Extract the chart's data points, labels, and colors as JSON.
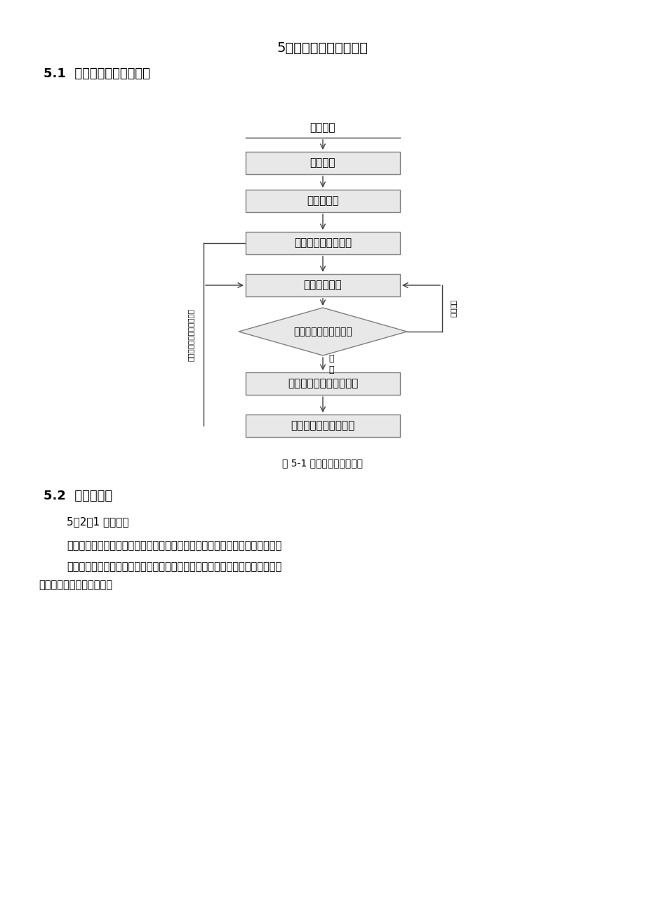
{
  "title": "5、工艺流程及操作要点",
  "section_title": "5.1  库区清淤施工工艺流程",
  "figure_caption": "图 5-1 库区清淤施工流程图",
  "section2_title": "5.2  、操作要点",
  "subsection_title": "5．2．1 施工测量",
  "paragraph1": "按照设计文件和控制点坐标，使用全站仪将淤泥开挖面的轮廓线使用红旗标出。",
  "paragraph2a": "围堰类型为土石围堰，截流方式使用单俄立堵截流，围堰按照设计要求分层进行",
  "paragraph2b": "填筑并使用压实机械压实。",
  "shigong_text": "施工测量",
  "steps": [
    {
      "text": "围堰填筑",
      "shape": "rect"
    },
    {
      "text": "库区抽排水",
      "shape": "rect"
    },
    {
      "text": "集水井、导流槽开挖",
      "shape": "rect"
    },
    {
      "text": "集水井抽排水",
      "shape": "rect"
    },
    {
      "text": "淤泥开挖面含水量测定",
      "shape": "diamond"
    },
    {
      "text": "施工道路修筑，淤泥开挖",
      "shape": "rect"
    },
    {
      "text": "淤泥运输至弃渣场堆放",
      "shape": "rect"
    }
  ],
  "left_label": "工程质量安全监督检查机构",
  "right_label": "反复执行",
  "fuhe_label": "符\n合",
  "box_fill": "#e8e8e8",
  "box_edge": "#808080",
  "bg_color": "#ffffff",
  "text_color": "#000000",
  "line_color": "#404040"
}
